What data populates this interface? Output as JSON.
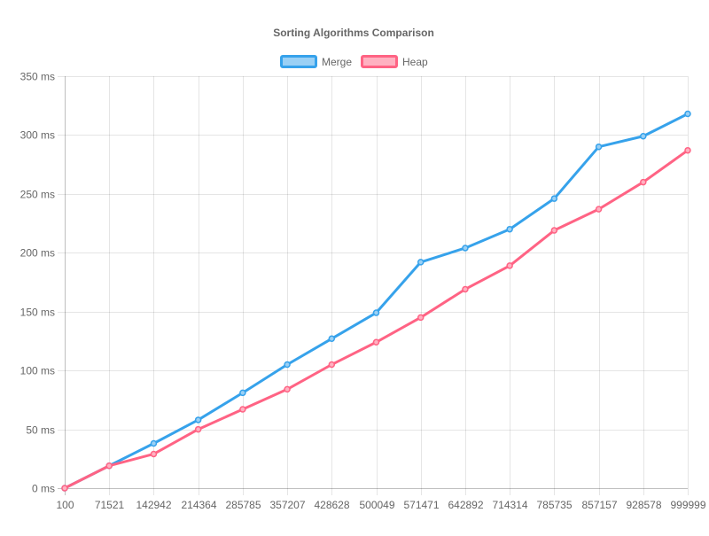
{
  "chart_data": {
    "type": "line",
    "title": "Sorting Algorithms Comparison",
    "x": [
      "100",
      "71521",
      "142942",
      "214364",
      "285785",
      "357207",
      "428628",
      "500049",
      "571471",
      "642892",
      "714314",
      "785735",
      "857157",
      "928578",
      "999999"
    ],
    "y_ticks": [
      "0 ms",
      "50 ms",
      "100 ms",
      "150 ms",
      "200 ms",
      "250 ms",
      "300 ms",
      "350 ms"
    ],
    "ylim": [
      0,
      350
    ],
    "grid": true,
    "legend_position": "top",
    "series": [
      {
        "name": "Merge",
        "color": "#36a2eb",
        "fill": "#9ad0f5",
        "values": [
          0,
          19,
          38,
          58,
          81,
          105,
          127,
          149,
          192,
          204,
          220,
          246,
          290,
          299,
          318
        ]
      },
      {
        "name": "Heap",
        "color": "#ff6384",
        "fill": "#ffb1c1",
        "values": [
          0,
          19,
          29,
          50,
          67,
          84,
          105,
          124,
          145,
          169,
          189,
          219,
          237,
          260,
          287
        ]
      }
    ]
  }
}
